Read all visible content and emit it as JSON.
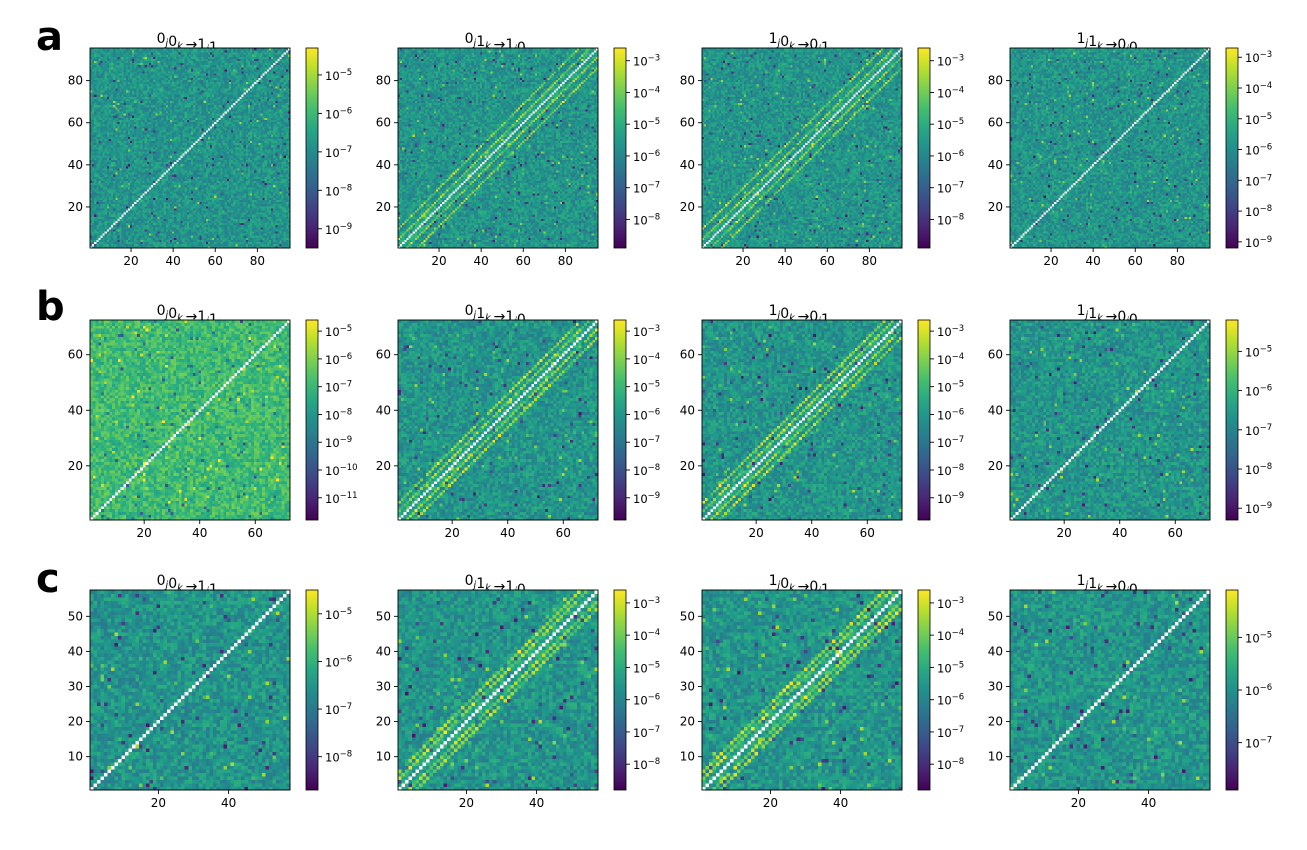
{
  "figure": {
    "rows": [
      {
        "label": "a"
      },
      {
        "label": "b"
      },
      {
        "label": "c"
      }
    ]
  },
  "chart_data": [
    {
      "type": "heatmap",
      "row": "a",
      "title": "0j0k → 1j1k",
      "title_parts": [
        [
          "0",
          "j"
        ],
        [
          "0",
          "k"
        ],
        "→",
        [
          "1",
          "j"
        ],
        [
          "1",
          "k"
        ]
      ],
      "grid_size": 95,
      "xticks": [
        20,
        40,
        60,
        80
      ],
      "yticks": [
        20,
        40,
        60,
        80
      ],
      "colorbar_scale": "log",
      "colorbar_ticks": [
        "10-5",
        "10-6",
        "10-7",
        "10-8",
        "10-9"
      ],
      "colorbar_exponents": [
        -5,
        -6,
        -7,
        -8,
        -9
      ],
      "colorbar_range": [
        -9.5,
        -4.3
      ],
      "pattern": "background",
      "diagonal": "white"
    },
    {
      "type": "heatmap",
      "row": "a",
      "title": "0j1k → 1j0k",
      "title_parts": [
        [
          "0",
          "j"
        ],
        [
          "1",
          "k"
        ],
        "→",
        [
          "1",
          "j"
        ],
        [
          "0",
          "k"
        ]
      ],
      "grid_size": 95,
      "xticks": [
        20,
        40,
        60,
        80
      ],
      "yticks": [
        20,
        40,
        60,
        80
      ],
      "colorbar_scale": "log",
      "colorbar_ticks": [
        "10-3",
        "10-4",
        "10-5",
        "10-6",
        "10-7",
        "10-8"
      ],
      "colorbar_exponents": [
        -3,
        -4,
        -5,
        -6,
        -7,
        -8
      ],
      "colorbar_range": [
        -8.9,
        -2.6
      ],
      "pattern": "off-diagonal-bands",
      "diagonal": "white"
    },
    {
      "type": "heatmap",
      "row": "a",
      "title": "1j0k → 0j1k",
      "title_parts": [
        [
          "1",
          "j"
        ],
        [
          "0",
          "k"
        ],
        "→",
        [
          "0",
          "j"
        ],
        [
          "1",
          "k"
        ]
      ],
      "grid_size": 95,
      "xticks": [
        20,
        40,
        60,
        80
      ],
      "yticks": [
        20,
        40,
        60,
        80
      ],
      "colorbar_scale": "log",
      "colorbar_ticks": [
        "10-3",
        "10-4",
        "10-5",
        "10-6",
        "10-7",
        "10-8"
      ],
      "colorbar_exponents": [
        -3,
        -4,
        -5,
        -6,
        -7,
        -8
      ],
      "colorbar_range": [
        -8.9,
        -2.6
      ],
      "pattern": "off-diagonal-bands",
      "diagonal": "white"
    },
    {
      "type": "heatmap",
      "row": "a",
      "title": "1j1k → 0j0k",
      "title_parts": [
        [
          "1",
          "j"
        ],
        [
          "1",
          "k"
        ],
        "→",
        [
          "0",
          "j"
        ],
        [
          "0",
          "k"
        ]
      ],
      "grid_size": 95,
      "xticks": [
        20,
        40,
        60,
        80
      ],
      "yticks": [
        20,
        40,
        60,
        80
      ],
      "colorbar_scale": "log",
      "colorbar_ticks": [
        "10-3",
        "10-4",
        "10-5",
        "10-6",
        "10-7",
        "10-8",
        "10-9"
      ],
      "colorbar_exponents": [
        -3,
        -4,
        -5,
        -6,
        -7,
        -8,
        -9
      ],
      "colorbar_range": [
        -9.2,
        -2.7
      ],
      "pattern": "background",
      "diagonal": "white"
    },
    {
      "type": "heatmap",
      "row": "b",
      "title": "0j0k → 1j1k",
      "title_parts": [
        [
          "0",
          "j"
        ],
        [
          "0",
          "k"
        ],
        "→",
        [
          "1",
          "j"
        ],
        [
          "1",
          "k"
        ]
      ],
      "grid_size": 72,
      "xticks": [
        20,
        40,
        60
      ],
      "yticks": [
        20,
        40,
        60
      ],
      "colorbar_scale": "log",
      "colorbar_ticks": [
        "10-5",
        "10-6",
        "10-7",
        "10-8",
        "10-9",
        "10-10",
        "10-11"
      ],
      "colorbar_exponents": [
        -5,
        -6,
        -7,
        -8,
        -9,
        -10,
        -11
      ],
      "colorbar_range": [
        -11.8,
        -4.6
      ],
      "pattern": "bright-background",
      "diagonal": "white"
    },
    {
      "type": "heatmap",
      "row": "b",
      "title": "0j1k → 1j0k",
      "title_parts": [
        [
          "0",
          "j"
        ],
        [
          "1",
          "k"
        ],
        "→",
        [
          "1",
          "j"
        ],
        [
          "0",
          "k"
        ]
      ],
      "grid_size": 72,
      "xticks": [
        20,
        40,
        60
      ],
      "yticks": [
        20,
        40,
        60
      ],
      "colorbar_scale": "log",
      "colorbar_ticks": [
        "10-3",
        "10-4",
        "10-5",
        "10-6",
        "10-7",
        "10-8",
        "10-9"
      ],
      "colorbar_exponents": [
        -3,
        -4,
        -5,
        -6,
        -7,
        -8,
        -9
      ],
      "colorbar_range": [
        -9.8,
        -2.6
      ],
      "pattern": "off-diagonal-bands",
      "diagonal": "white"
    },
    {
      "type": "heatmap",
      "row": "b",
      "title": "1j0k → 0j1k",
      "title_parts": [
        [
          "1",
          "j"
        ],
        [
          "0",
          "k"
        ],
        "→",
        [
          "0",
          "j"
        ],
        [
          "1",
          "k"
        ]
      ],
      "grid_size": 72,
      "xticks": [
        20,
        40,
        60
      ],
      "yticks": [
        20,
        40,
        60
      ],
      "colorbar_scale": "log",
      "colorbar_ticks": [
        "10-3",
        "10-4",
        "10-5",
        "10-6",
        "10-7",
        "10-8",
        "10-9"
      ],
      "colorbar_exponents": [
        -3,
        -4,
        -5,
        -6,
        -7,
        -8,
        -9
      ],
      "colorbar_range": [
        -9.8,
        -2.6
      ],
      "pattern": "off-diagonal-bands",
      "diagonal": "white"
    },
    {
      "type": "heatmap",
      "row": "b",
      "title": "1j1k → 0j0k",
      "title_parts": [
        [
          "1",
          "j"
        ],
        [
          "1",
          "k"
        ],
        "→",
        [
          "0",
          "j"
        ],
        [
          "0",
          "k"
        ]
      ],
      "grid_size": 72,
      "xticks": [
        20,
        40,
        60
      ],
      "yticks": [
        20,
        40,
        60
      ],
      "colorbar_scale": "log",
      "colorbar_ticks": [
        "10-5",
        "10-6",
        "10-7",
        "10-8",
        "10-9"
      ],
      "colorbar_exponents": [
        -5,
        -6,
        -7,
        -8,
        -9
      ],
      "colorbar_range": [
        -9.3,
        -4.2
      ],
      "pattern": "background",
      "diagonal": "white"
    },
    {
      "type": "heatmap",
      "row": "c",
      "title": "0j0k → 1j1k",
      "title_parts": [
        [
          "0",
          "j"
        ],
        [
          "0",
          "k"
        ],
        "→",
        [
          "1",
          "j"
        ],
        [
          "1",
          "k"
        ]
      ],
      "grid_size": 57,
      "xticks": [
        20,
        40
      ],
      "yticks": [
        10,
        20,
        30,
        40,
        50
      ],
      "colorbar_scale": "log",
      "colorbar_ticks": [
        "10-5",
        "10-6",
        "10-7",
        "10-8"
      ],
      "colorbar_exponents": [
        -5,
        -6,
        -7,
        -8
      ],
      "colorbar_range": [
        -8.7,
        -4.5
      ],
      "pattern": "background",
      "diagonal": "white"
    },
    {
      "type": "heatmap",
      "row": "c",
      "title": "0j1k → 1j0k",
      "title_parts": [
        [
          "0",
          "j"
        ],
        [
          "1",
          "k"
        ],
        "→",
        [
          "1",
          "j"
        ],
        [
          "0",
          "k"
        ]
      ],
      "grid_size": 57,
      "xticks": [
        20,
        40
      ],
      "yticks": [
        10,
        20,
        30,
        40,
        50
      ],
      "colorbar_scale": "log",
      "colorbar_ticks": [
        "10-3",
        "10-4",
        "10-5",
        "10-6",
        "10-7",
        "10-8"
      ],
      "colorbar_exponents": [
        -3,
        -4,
        -5,
        -6,
        -7,
        -8
      ],
      "colorbar_range": [
        -8.8,
        -2.6
      ],
      "pattern": "off-diagonal-bands",
      "diagonal": "white"
    },
    {
      "type": "heatmap",
      "row": "c",
      "title": "1j0k → 0j1k",
      "title_parts": [
        [
          "1",
          "j"
        ],
        [
          "0",
          "k"
        ],
        "→",
        [
          "0",
          "j"
        ],
        [
          "1",
          "k"
        ]
      ],
      "grid_size": 57,
      "xticks": [
        20,
        40
      ],
      "yticks": [
        10,
        20,
        30,
        40,
        50
      ],
      "colorbar_scale": "log",
      "colorbar_ticks": [
        "10-3",
        "10-4",
        "10-5",
        "10-6",
        "10-7",
        "10-8"
      ],
      "colorbar_exponents": [
        -3,
        -4,
        -5,
        -6,
        -7,
        -8
      ],
      "colorbar_range": [
        -8.8,
        -2.6
      ],
      "pattern": "off-diagonal-bands",
      "diagonal": "white"
    },
    {
      "type": "heatmap",
      "row": "c",
      "title": "1j1k → 0j0k",
      "title_parts": [
        [
          "1",
          "j"
        ],
        [
          "1",
          "k"
        ],
        "→",
        [
          "0",
          "j"
        ],
        [
          "0",
          "k"
        ]
      ],
      "grid_size": 57,
      "xticks": [
        20,
        40
      ],
      "yticks": [
        10,
        20,
        30,
        40,
        50
      ],
      "colorbar_scale": "log",
      "colorbar_ticks": [
        "10-5",
        "10-6",
        "10-7"
      ],
      "colorbar_exponents": [
        -5,
        -6,
        -7
      ],
      "colorbar_range": [
        -7.9,
        -4.1
      ],
      "pattern": "background",
      "diagonal": "white"
    }
  ]
}
